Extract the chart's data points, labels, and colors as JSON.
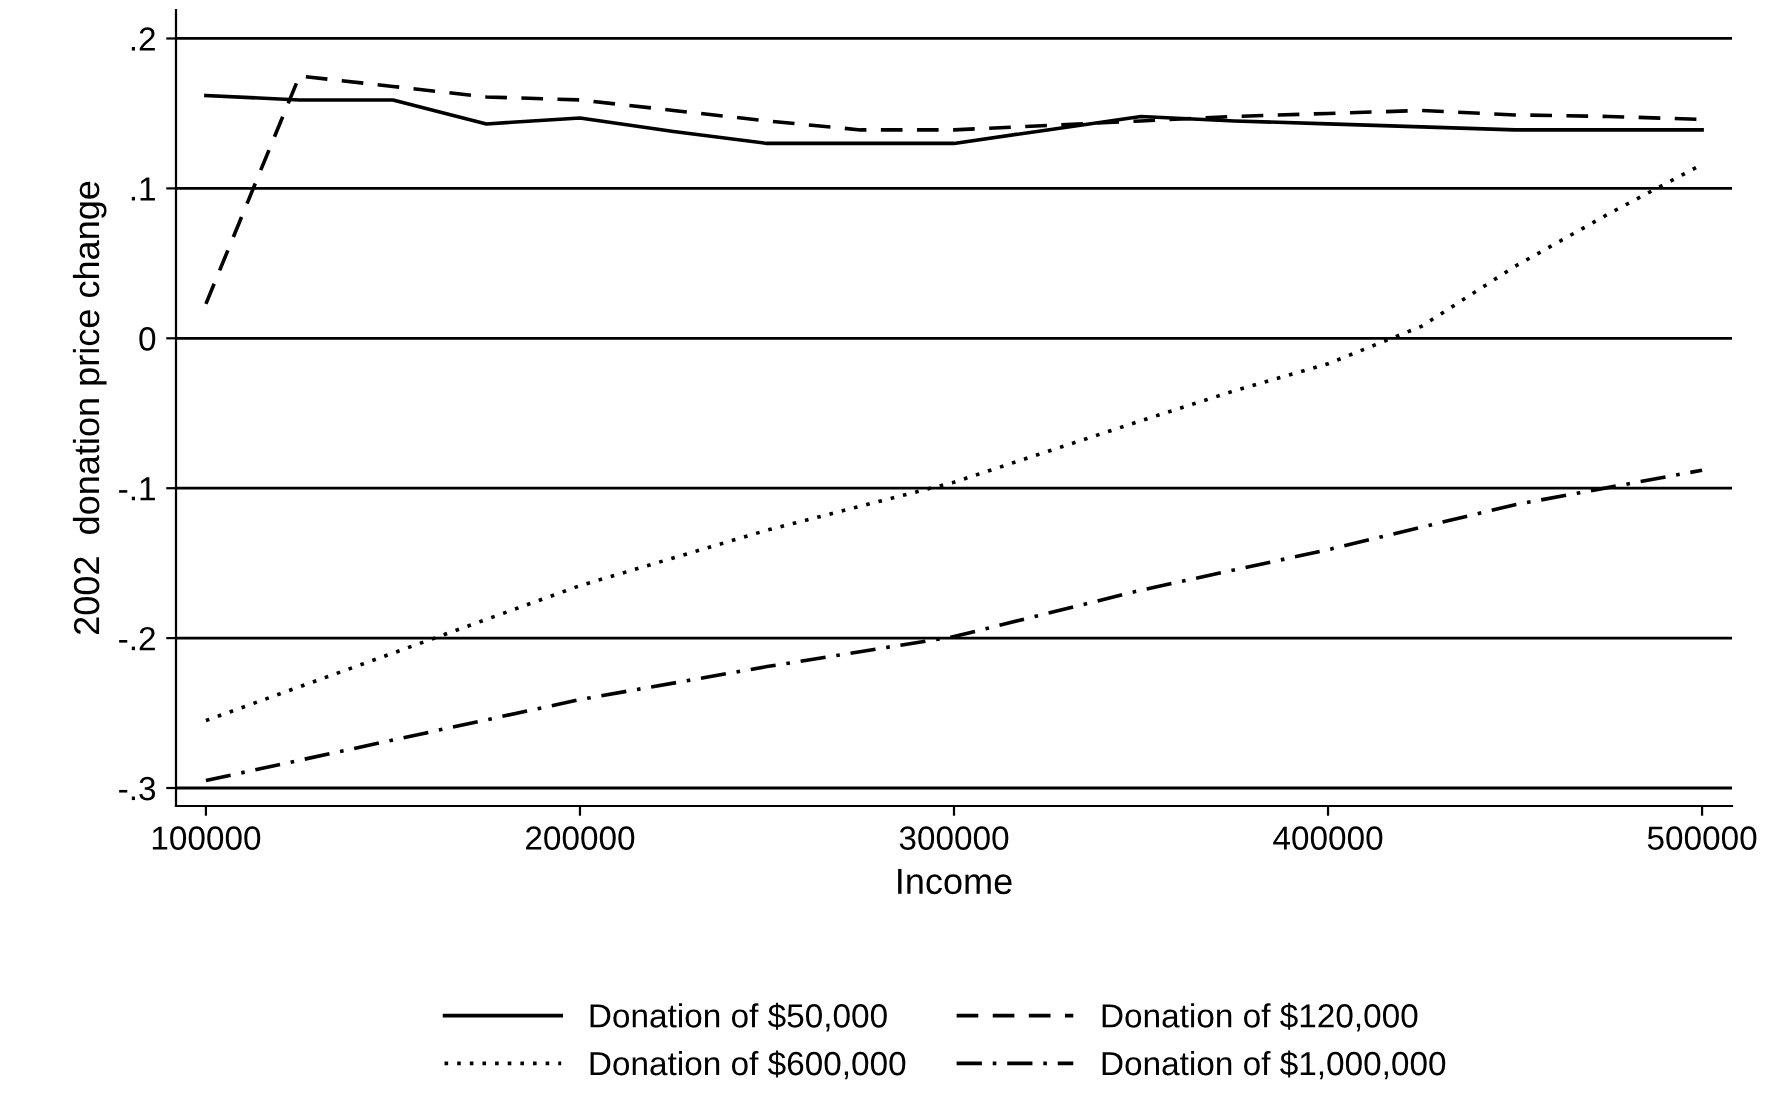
{
  "chart_data": {
    "type": "line",
    "xlabel": "Income",
    "ylabel": "2002  donation price change",
    "x": [
      100000,
      125000,
      150000,
      175000,
      200000,
      225000,
      250000,
      275000,
      300000,
      325000,
      350000,
      375000,
      400000,
      425000,
      450000,
      475000,
      500000
    ],
    "series": [
      {
        "name": "Donation of $50,000",
        "color": "#000000",
        "line_style": "solid",
        "values": [
          0.162,
          0.159,
          0.159,
          0.143,
          0.147,
          0.138,
          0.13,
          0.13,
          0.13,
          0.139,
          0.148,
          0.145,
          0.143,
          0.141,
          0.139,
          0.139,
          0.139
        ]
      },
      {
        "name": "Donation of $120,000",
        "color": "#000000",
        "line_style": "dashed",
        "values": [
          0.023,
          0.175,
          0.168,
          0.161,
          0.159,
          0.152,
          0.145,
          0.139,
          0.139,
          0.142,
          0.145,
          0.148,
          0.15,
          0.152,
          0.149,
          0.148,
          0.146
        ]
      },
      {
        "name": "Donation of $600,000",
        "color": "#000000",
        "line_style": "dotted",
        "x": [
          100000,
          150000,
          200000,
          250000,
          300000,
          350000,
          375000,
          400000,
          425000,
          450000,
          475000,
          500000
        ],
        "values": [
          -0.255,
          -0.21,
          -0.165,
          -0.128,
          -0.096,
          -0.055,
          -0.035,
          -0.017,
          0.008,
          0.048,
          0.083,
          0.116
        ]
      },
      {
        "name": "Donation of $1,000,000",
        "color": "#000000",
        "line_style": "dashdot",
        "x": [
          100000,
          150000,
          200000,
          250000,
          300000,
          350000,
          400000,
          450000,
          500000
        ],
        "values": [
          -0.295,
          -0.268,
          -0.241,
          -0.219,
          -0.199,
          -0.168,
          -0.141,
          -0.111,
          -0.088
        ]
      }
    ],
    "xlim": [
      92000,
      508000
    ],
    "xticks": [
      100000,
      200000,
      300000,
      400000,
      500000
    ],
    "ylim": [
      -0.312,
      0.219
    ],
    "yticks": [
      {
        "value": 0.2,
        "label": ".2"
      },
      {
        "value": 0.1,
        "label": ".1"
      },
      {
        "value": 0,
        "label": "0"
      },
      {
        "value": -0.1,
        "label": "-.1"
      },
      {
        "value": -0.2,
        "label": "-.2"
      },
      {
        "value": -0.3,
        "label": "-.3"
      }
    ],
    "grid": "y",
    "legend": "bottom",
    "marker": "none"
  }
}
